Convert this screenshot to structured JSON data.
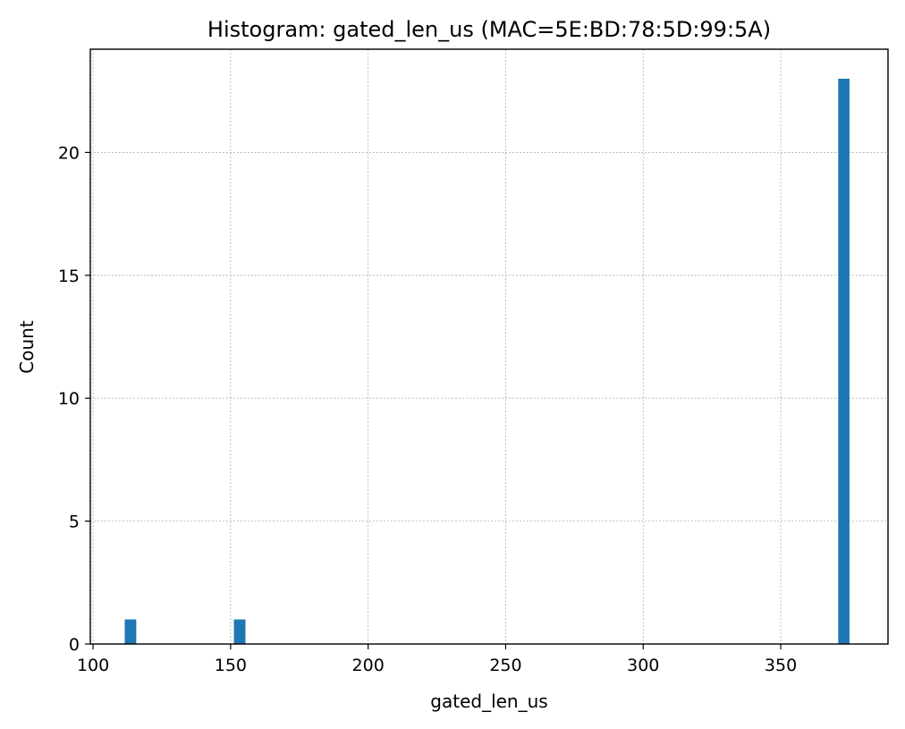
{
  "chart_data": {
    "type": "bar",
    "title": "Histogram: gated_len_us (MAC=5E:BD:78:5D:99:5A)",
    "xlabel": "gated_len_us",
    "ylabel": "Count",
    "xlim": [
      99,
      389
    ],
    "ylim": [
      0,
      24.2
    ],
    "xticks": [
      100,
      150,
      200,
      250,
      300,
      350
    ],
    "yticks": [
      0,
      5,
      10,
      15,
      20
    ],
    "grid": true,
    "bar_color": "#1f77b4",
    "bins": [
      {
        "x0": 111.5,
        "x1": 115.7,
        "count": 1
      },
      {
        "x0": 151.2,
        "x1": 155.4,
        "count": 1
      },
      {
        "x0": 370.9,
        "x1": 375.0,
        "count": 23
      }
    ]
  }
}
